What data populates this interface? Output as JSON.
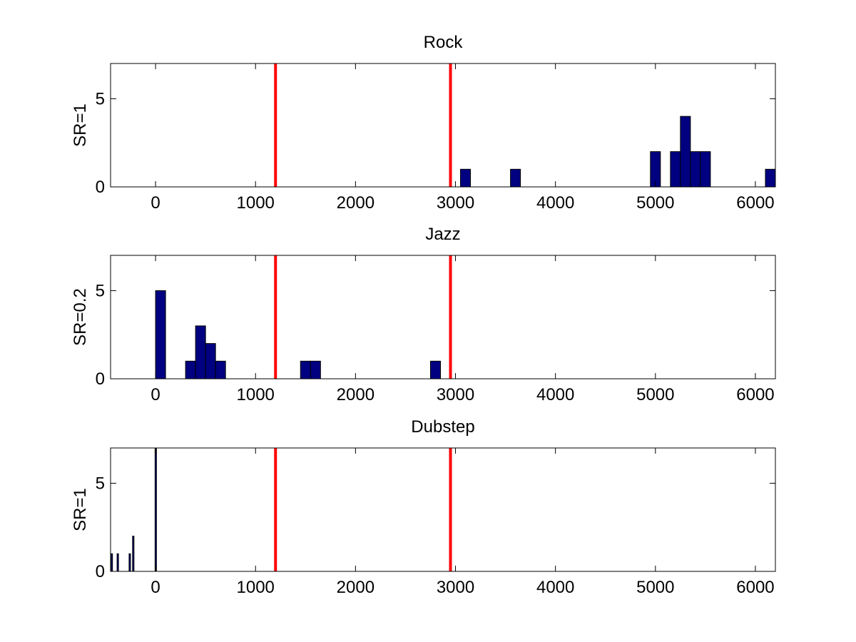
{
  "chart_data": [
    {
      "type": "bar",
      "title": "Rock",
      "ylabel": "SR=1",
      "xlim": [
        -450,
        6200
      ],
      "ylim": [
        0,
        7
      ],
      "xticks": [
        0,
        1000,
        2000,
        3000,
        4000,
        5000,
        6000
      ],
      "yticks": [
        0,
        5
      ],
      "bin_width": 100,
      "bars": [
        {
          "x": 3100,
          "y": 1
        },
        {
          "x": 3600,
          "y": 1
        },
        {
          "x": 5000,
          "y": 2
        },
        {
          "x": 5200,
          "y": 2
        },
        {
          "x": 5300,
          "y": 4
        },
        {
          "x": 5400,
          "y": 2
        },
        {
          "x": 5500,
          "y": 2
        },
        {
          "x": 6150,
          "y": 1
        }
      ],
      "vlines": [
        1200,
        2950
      ],
      "bar_color": "#000080",
      "vline_color": "#ff0000"
    },
    {
      "type": "bar",
      "title": "Jazz",
      "ylabel": "SR=0.2",
      "xlim": [
        -450,
        6200
      ],
      "ylim": [
        0,
        7
      ],
      "xticks": [
        0,
        1000,
        2000,
        3000,
        4000,
        5000,
        6000
      ],
      "yticks": [
        0,
        5
      ],
      "bin_width": 100,
      "bars": [
        {
          "x": 50,
          "y": 5
        },
        {
          "x": 350,
          "y": 1
        },
        {
          "x": 450,
          "y": 3
        },
        {
          "x": 550,
          "y": 2
        },
        {
          "x": 650,
          "y": 1
        },
        {
          "x": 1500,
          "y": 1
        },
        {
          "x": 1600,
          "y": 1
        },
        {
          "x": 2800,
          "y": 1
        }
      ],
      "vlines": [
        1200,
        2950
      ],
      "bar_color": "#000080",
      "vline_color": "#ff0000"
    },
    {
      "type": "bar",
      "title": "Dubstep",
      "ylabel": "SR=1",
      "xlim": [
        -450,
        6200
      ],
      "ylim": [
        0,
        7
      ],
      "xticks": [
        0,
        1000,
        2000,
        3000,
        4000,
        5000,
        6000
      ],
      "yticks": [
        0,
        5
      ],
      "bin_width": 10,
      "bars": [
        {
          "x": -440,
          "y": 1
        },
        {
          "x": -380,
          "y": 1
        },
        {
          "x": -260,
          "y": 1
        },
        {
          "x": -225,
          "y": 2
        },
        {
          "x": 0,
          "y": 7
        }
      ],
      "vlines": [
        1200,
        2950
      ],
      "bar_color": "#000080",
      "vline_color": "#ff0000"
    }
  ]
}
